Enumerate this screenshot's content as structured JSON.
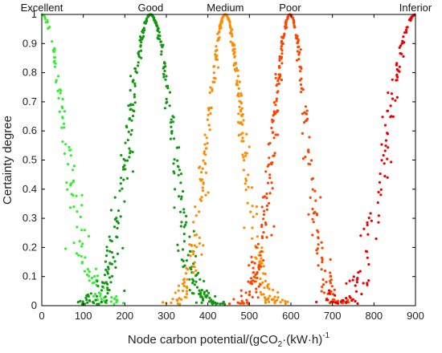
{
  "chart_data": {
    "type": "scatter",
    "title": "",
    "xlabel_main": "Node carbon potential/(gCO",
    "xlabel_sub2": "2",
    "xlabel_mid": "·(kW·h)",
    "xlabel_sup": "-1",
    "xlabel_end": "",
    "ylabel": "Certainty degree",
    "xlim": [
      0,
      900
    ],
    "ylim": [
      0,
      1
    ],
    "xticks": [
      "0",
      "100",
      "200",
      "300",
      "400",
      "500",
      "600",
      "700",
      "800",
      "900"
    ],
    "yticks": [
      "0",
      "0.1",
      "0.2",
      "0.3",
      "0.4",
      "0.5",
      "0.6",
      "0.7",
      "0.8",
      "0.9",
      "1"
    ],
    "grid": false,
    "grade_labels": [
      {
        "name": "Excellent",
        "x": 0
      },
      {
        "name": "Good",
        "x": 262
      },
      {
        "name": "Medium",
        "x": 442
      },
      {
        "name": "Poor",
        "x": 598
      },
      {
        "name": "Inferior",
        "x": 900
      }
    ],
    "series": [
      {
        "color": "#33ee33",
        "center": 0,
        "half_width_left": 0,
        "half_width_right": 262,
        "sigma": 120,
        "count": 260
      },
      {
        "color": "#119911",
        "center": 262,
        "half_width_left": 262,
        "half_width_right": 180,
        "sigma": 110,
        "count": 420
      },
      {
        "color": "#ff8c00",
        "center": 442,
        "half_width_left": 180,
        "half_width_right": 156,
        "sigma": 90,
        "count": 380
      },
      {
        "color": "#ff4500",
        "center": 598,
        "half_width_left": 156,
        "half_width_right": 302,
        "sigma": 85,
        "count": 380
      },
      {
        "color": "#ee0000",
        "center": 900,
        "half_width_left": 302,
        "half_width_right": 0,
        "sigma": 140,
        "count": 320
      }
    ]
  }
}
